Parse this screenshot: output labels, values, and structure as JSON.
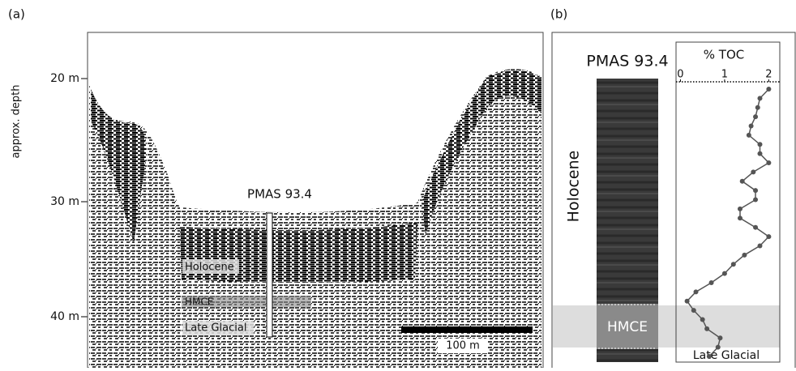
{
  "panel_a": {
    "label": "(a)",
    "axis_label": "approx. depth",
    "depth_labels": [
      "20 m",
      "30 m",
      "40 m"
    ],
    "core_label": "PMAS 93.4",
    "units": [
      "Holocene",
      "HMCE",
      "Late Glacial"
    ],
    "scale_bar": "100 m"
  },
  "panel_b": {
    "label": "(b)",
    "core_label": "PMAS 93.4",
    "units": [
      "Holocene",
      "HMCE",
      "Late Glacial"
    ]
  },
  "chart_data": {
    "type": "line",
    "title": "% TOC",
    "color": "#555555",
    "categories": [
      null,
      null,
      null,
      null,
      null,
      null,
      null,
      null,
      null,
      null,
      null,
      null,
      null,
      null,
      null,
      null,
      null,
      null,
      null,
      null,
      null,
      null,
      null,
      null,
      null,
      null,
      null,
      null,
      null,
      null
    ],
    "values": [
      2.0,
      1.8,
      1.75,
      1.7,
      1.6,
      1.55,
      1.8,
      1.8,
      2.0,
      1.65,
      1.4,
      1.7,
      1.7,
      1.35,
      1.35,
      1.7,
      2.0,
      1.8,
      1.45,
      1.2,
      1.0,
      0.7,
      0.35,
      0.15,
      0.3,
      0.5,
      0.6,
      0.9,
      0.85,
      0.65
    ],
    "xlim": [
      -0.1,
      2.25
    ],
    "xticks": [
      0,
      1,
      2
    ]
  }
}
